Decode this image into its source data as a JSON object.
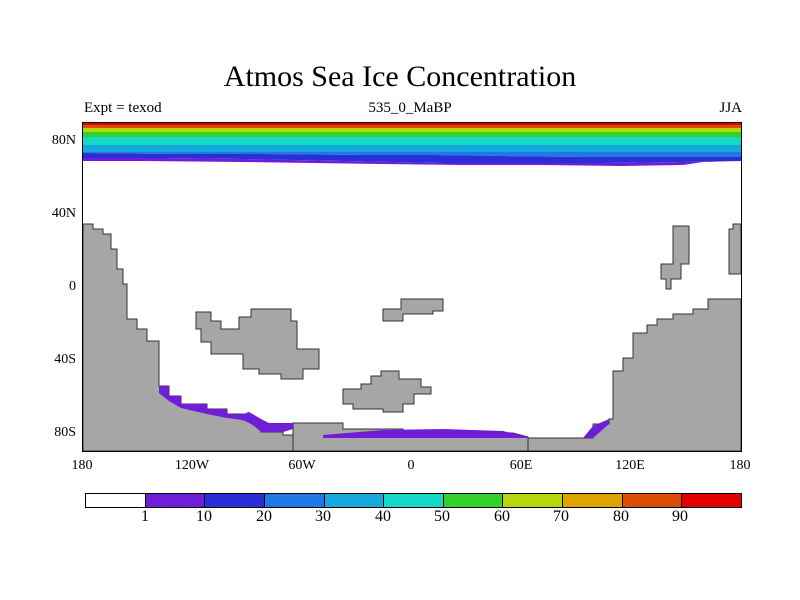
{
  "title": "Atmos Sea Ice Concentration",
  "left_label": "Expt = texod",
  "center_label": "535_0_MaBP",
  "right_label": "JJA",
  "y_ticks": [
    "80N",
    "40N",
    "0",
    "40S",
    "80S"
  ],
  "x_ticks": [
    "180",
    "120W",
    "60W",
    "0",
    "60E",
    "120E",
    "180"
  ],
  "legend": {
    "colors": [
      "#ffffff",
      "#6f1dd6",
      "#2a2ed6",
      "#1f78e4",
      "#15a9dd",
      "#17d7c8",
      "#33d12b",
      "#b5d70c",
      "#dfa300",
      "#dc4c05",
      "#e00000"
    ],
    "labels": [
      "1",
      "10",
      "20",
      "30",
      "40",
      "50",
      "60",
      "70",
      "80",
      "90"
    ]
  }
}
